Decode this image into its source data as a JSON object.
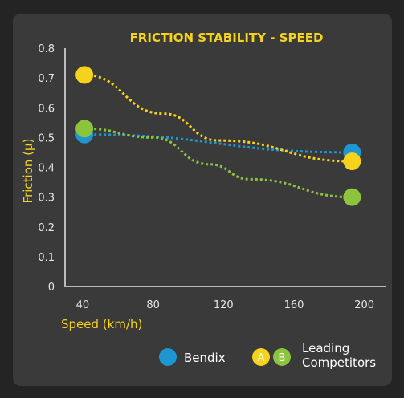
{
  "chart_data": {
    "type": "line",
    "title": "FRICTION STABILITY - SPEED",
    "xlabel": "Speed (km/h)",
    "ylabel": "Friction (μ)",
    "xlim": [
      30,
      212
    ],
    "ylim": [
      0,
      0.8
    ],
    "xticks": [
      40,
      80,
      120,
      160,
      200
    ],
    "yticks": [
      "0",
      "0.1",
      "0.2",
      "0.3",
      "0.4",
      "0.5",
      "0.6",
      "0.7",
      "0.8"
    ],
    "grid": false,
    "series": [
      {
        "key": "bendix",
        "color": "#1e96d2",
        "x": [
          41,
          193
        ],
        "y": [
          0.51,
          0.45
        ]
      },
      {
        "key": "a",
        "color": "#f5d31c",
        "x": [
          41,
          86,
          117,
          193
        ],
        "y": [
          0.71,
          0.58,
          0.49,
          0.42
        ]
      },
      {
        "key": "b",
        "color": "#8cc43e",
        "x": [
          41,
          80,
          112,
          135,
          193
        ],
        "y": [
          0.53,
          0.5,
          0.41,
          0.36,
          0.3
        ]
      }
    ],
    "legend": {
      "bendix": "Bendix",
      "a_badge": "A",
      "b_badge": "B",
      "competitors_line1": "Leading",
      "competitors_line2": "Competitors"
    }
  },
  "colors": {
    "background": "#242424",
    "panel": "#3a3a3a",
    "title": "#f5d31c",
    "axis": "#e6e6e6",
    "label": "#f5d31c"
  }
}
